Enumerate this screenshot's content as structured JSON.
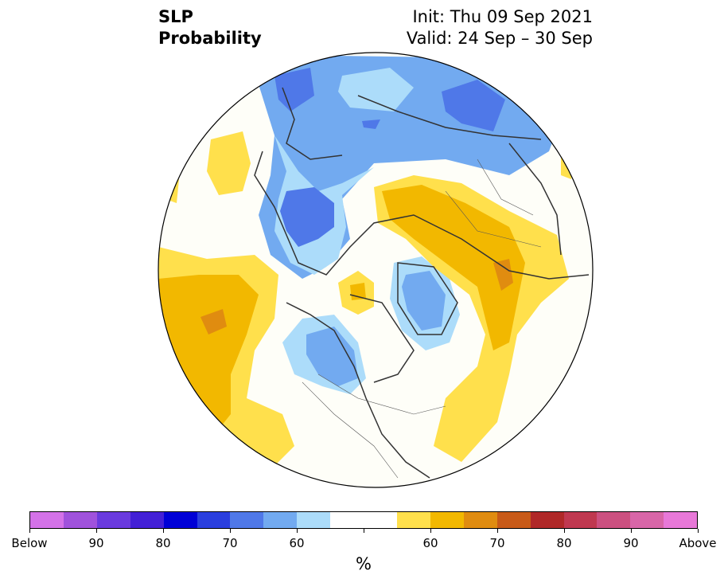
{
  "title": {
    "variable_line1": "SLP",
    "variable_line2": "Probability",
    "init": "Init: Thu 09 Sep 2021",
    "valid": "Valid: 24 Sep – 30 Sep"
  },
  "map": {
    "projection": "north polar stereographic",
    "background_color": "#fefef8",
    "coastline_color": "#333333"
  },
  "colorbar": {
    "colors": [
      "#d472e8",
      "#a052dc",
      "#6a3ade",
      "#4320d6",
      "#0000d6",
      "#2a3ede",
      "#4f78e8",
      "#72aaf0",
      "#acdcfa",
      "#ffffff",
      "#ffffff",
      "#ffe04c",
      "#f2b800",
      "#e08c10",
      "#c85a18",
      "#b02828",
      "#c03850",
      "#cc5080",
      "#d866a8",
      "#e878d8"
    ],
    "tick_labels": [
      "Below",
      "90",
      "80",
      "70",
      "60",
      "",
      "60",
      "70",
      "80",
      "90",
      "Above"
    ],
    "units": "%"
  }
}
